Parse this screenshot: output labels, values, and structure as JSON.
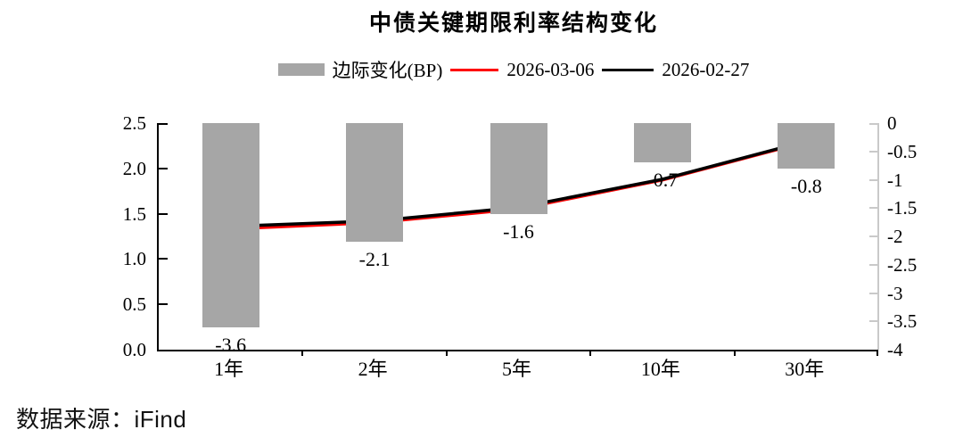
{
  "chart_data": {
    "type": "bar+line combo, dual axis",
    "title": "中债关键期限利率结构变化",
    "categories": [
      "1年",
      "2年",
      "5年",
      "10年",
      "30年"
    ],
    "bar_series": {
      "name": "边际变化(BP)",
      "axis": "right",
      "color": "#a6a6a6",
      "values": [
        -3.6,
        -2.1,
        -1.6,
        -0.7,
        -0.8
      ],
      "labels": [
        "-3.6",
        "-2.1",
        "-1.6",
        "-0.7",
        "-0.8"
      ]
    },
    "line_series": [
      {
        "name": "2026-03-06",
        "axis": "left",
        "color": "#fe0000",
        "stroke_width": 3,
        "values": [
          1.33,
          1.4,
          1.55,
          1.87,
          2.29
        ]
      },
      {
        "name": "2026-02-27",
        "axis": "left",
        "color": "#000000",
        "stroke_width": 3.5,
        "values": [
          1.36,
          1.42,
          1.57,
          1.88,
          2.3
        ]
      }
    ],
    "left_axis": {
      "min": 0,
      "max": 2.5,
      "ticks": [
        2.5,
        2.0,
        1.5,
        1.0,
        0.5,
        0.0
      ],
      "tick_labels": [
        "2.5",
        "2.0",
        "1.5",
        "1.0",
        "0.5",
        "0.0"
      ]
    },
    "right_axis": {
      "min": -4,
      "max": 0,
      "ticks": [
        0,
        -0.5,
        -1,
        -1.5,
        -2,
        -2.5,
        -3,
        -3.5,
        -4
      ],
      "tick_labels": [
        "0",
        "-0.5",
        "-1",
        "-1.5",
        "-2",
        "-2.5",
        "-3",
        "-3.5",
        "-4"
      ]
    },
    "legend_position": "top",
    "grid": "off"
  },
  "footer": {
    "source": "数据来源：iFind"
  }
}
